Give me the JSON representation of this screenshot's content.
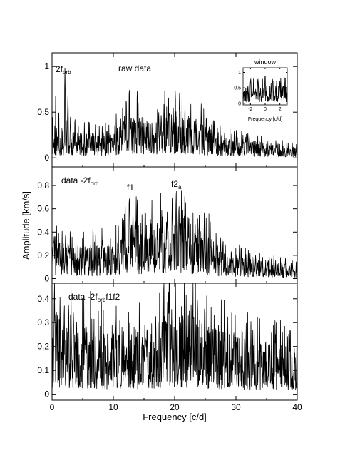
{
  "chart_data": [
    {
      "type": "line",
      "panel": "top",
      "annotations": [
        "2f",
        "orb",
        "raw data"
      ],
      "xlabel": "Frequency [c/d]",
      "xlim": [
        0,
        40
      ],
      "ylim": [
        -0.1,
        1.15
      ],
      "yticks": [
        0,
        0.5,
        1
      ],
      "ytick_labels": [
        "0",
        "0.5",
        "1"
      ],
      "features": {
        "peaks": [
          {
            "x": 0.6,
            "y": 0.75
          },
          {
            "x": 1.1,
            "y": 0.55
          },
          {
            "x": 2.1,
            "y": 1.0
          },
          {
            "x": 2.6,
            "y": 0.7
          },
          {
            "x": 3.0,
            "y": 0.45
          },
          {
            "x": 12.1,
            "y": 0.7
          },
          {
            "x": 12.6,
            "y": 0.82
          },
          {
            "x": 13.9,
            "y": 0.8
          },
          {
            "x": 19.0,
            "y": 0.72
          },
          {
            "x": 20.1,
            "y": 0.78
          },
          {
            "x": 20.8,
            "y": 0.73
          }
        ],
        "hump_level": [
          {
            "x": 0,
            "y": 0.18
          },
          {
            "x": 5,
            "y": 0.14
          },
          {
            "x": 10,
            "y": 0.16
          },
          {
            "x": 13,
            "y": 0.24
          },
          {
            "x": 17,
            "y": 0.24
          },
          {
            "x": 20,
            "y": 0.3
          },
          {
            "x": 25,
            "y": 0.2
          },
          {
            "x": 28,
            "y": 0.13
          },
          {
            "x": 40,
            "y": 0.06
          }
        ]
      }
    },
    {
      "type": "line",
      "panel": "middle",
      "annotations": [
        "data -2f",
        "orb",
        "f1",
        "f2",
        "a"
      ],
      "ylabel": "Amplitude [km/s]",
      "xlim": [
        0,
        40
      ],
      "ylim": [
        -0.04,
        0.96
      ],
      "yticks": [
        0,
        0.2,
        0.4,
        0.6,
        0.8
      ],
      "ytick_labels": [
        "0",
        "0.2",
        "0.4",
        "0.6",
        "0.8"
      ],
      "features": {
        "peaks": [
          {
            "x": 12.6,
            "y": 0.76
          },
          {
            "x": 13.2,
            "y": 0.58
          },
          {
            "x": 13.9,
            "y": 0.74
          },
          {
            "x": 18.8,
            "y": 0.6
          },
          {
            "x": 19.6,
            "y": 0.7
          },
          {
            "x": 20.1,
            "y": 0.78
          },
          {
            "x": 20.7,
            "y": 0.68
          }
        ],
        "hump_level": [
          {
            "x": 0,
            "y": 0.18
          },
          {
            "x": 5,
            "y": 0.15
          },
          {
            "x": 10,
            "y": 0.16
          },
          {
            "x": 13,
            "y": 0.26
          },
          {
            "x": 17,
            "y": 0.26
          },
          {
            "x": 20,
            "y": 0.3
          },
          {
            "x": 25,
            "y": 0.22
          },
          {
            "x": 28,
            "y": 0.12
          },
          {
            "x": 40,
            "y": 0.06
          }
        ]
      }
    },
    {
      "type": "line",
      "panel": "bottom",
      "annotations": [
        "data -2f",
        "orb",
        "f1f2"
      ],
      "xlabel": "Frequency [c/d]",
      "xlim": [
        0,
        40
      ],
      "xticks": [
        0,
        10,
        20,
        30,
        40
      ],
      "xtick_labels": [
        "0",
        "10",
        "20",
        "30",
        "40"
      ],
      "ylim": [
        -0.025,
        0.465
      ],
      "yticks": [
        0,
        0.1,
        0.2,
        0.3,
        0.4
      ],
      "ytick_labels": [
        "0",
        "0.1",
        "0.2",
        "0.3",
        "0.4"
      ],
      "features": {
        "peaks": [
          {
            "x": 0.4,
            "y": 0.37
          },
          {
            "x": 1.3,
            "y": 0.41
          },
          {
            "x": 2.0,
            "y": 0.4
          },
          {
            "x": 2.7,
            "y": 0.41
          },
          {
            "x": 3.5,
            "y": 0.36
          },
          {
            "x": 10.3,
            "y": 0.35
          },
          {
            "x": 19.7,
            "y": 0.33
          },
          {
            "x": 21.0,
            "y": 0.3
          }
        ],
        "hump_level": [
          {
            "x": 0,
            "y": 0.19
          },
          {
            "x": 5,
            "y": 0.16
          },
          {
            "x": 10,
            "y": 0.14
          },
          {
            "x": 15,
            "y": 0.15
          },
          {
            "x": 20,
            "y": 0.2
          },
          {
            "x": 25,
            "y": 0.16
          },
          {
            "x": 30,
            "y": 0.13
          },
          {
            "x": 40,
            "y": 0.11
          }
        ]
      }
    },
    {
      "type": "line",
      "panel": "inset",
      "title": "window",
      "xlabel": "Frequency [c/d]",
      "xlim": [
        -3,
        3
      ],
      "xticks": [
        -2,
        0,
        2
      ],
      "xtick_labels": [
        "-2",
        "0",
        "2"
      ],
      "ylim": [
        -0.05,
        1.15
      ],
      "yticks": [
        0,
        0.5,
        1
      ],
      "ytick_labels": [
        "0",
        "0.5",
        "1"
      ],
      "features": {
        "peaks": [
          {
            "x": -2,
            "y": 0.75
          },
          {
            "x": -1,
            "y": 0.85
          },
          {
            "x": 0,
            "y": 1.0
          },
          {
            "x": 1,
            "y": 0.85
          },
          {
            "x": 2,
            "y": 0.75
          }
        ],
        "base_level": 0.3
      }
    }
  ]
}
